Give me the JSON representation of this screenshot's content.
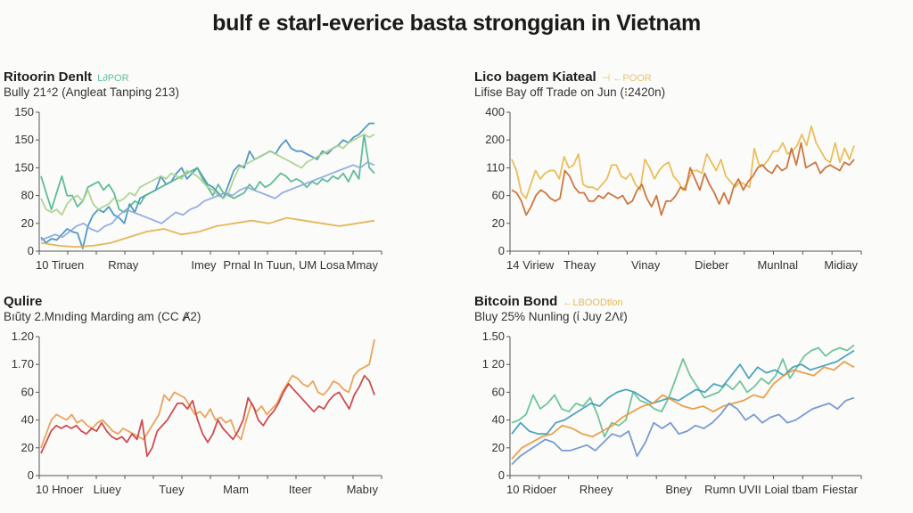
{
  "page": {
    "title": "bulf e starl-everice basta stronggian in Vietnam"
  },
  "chart_data": [
    {
      "type": "line",
      "title": "Ritoorin Denlt",
      "legend_tag": "L∂POR",
      "legend_color": "#5fbf9f",
      "subtitle": "Bully 21⁴2 (Angleat Tanping 213)",
      "xlabel": "",
      "ylabel": "",
      "y_ticks": [
        "0",
        "20",
        "80",
        "150",
        "150",
        "150"
      ],
      "x_ticks": [
        "10 Tiruen",
        "Rmay",
        "Imey",
        "Prnal In Tuun, UM Losa",
        "Mmay"
      ],
      "y_units": "tick-position (0 = bottom tick, 5 = top tick)",
      "ylim": [
        0,
        5
      ],
      "grid": false,
      "series": [
        {
          "name": "blue",
          "color": "#3d8fbf",
          "values": [
            0.5,
            0.3,
            0.45,
            0.4,
            0.6,
            0.8,
            0.7,
            0.65,
            0.1,
            0.9,
            1.3,
            1.5,
            1.4,
            1.6,
            1.3,
            1.2,
            1.0,
            1.7,
            1.4,
            1.9,
            2.0,
            2.1,
            2.2,
            2.7,
            2.4,
            2.5,
            2.8,
            3.0,
            2.6,
            2.8,
            3.0,
            2.7,
            2.4,
            2.3,
            2.1,
            1.9,
            2.4,
            2.9,
            3.1,
            3.0,
            3.6,
            3.3,
            3.4,
            3.5,
            3.6,
            3.5,
            3.8,
            4.0,
            3.7,
            3.6,
            3.6,
            3.5,
            3.4,
            3.3,
            3.6,
            3.5,
            3.7,
            3.8,
            4.0,
            3.9,
            4.1,
            4.2,
            4.4,
            4.6,
            4.6
          ]
        },
        {
          "name": "teal",
          "color": "#4fb58f",
          "values": [
            2.7,
            2.1,
            1.5,
            2.1,
            2.7,
            2.0,
            2.0,
            1.6,
            1.8,
            2.3,
            2.4,
            2.5,
            2.2,
            2.4,
            2.1,
            1.5,
            1.4,
            1.6,
            1.8,
            1.7,
            2.0,
            2.1,
            2.2,
            2.3,
            2.4,
            2.5,
            2.6,
            2.7,
            2.8,
            2.9,
            3.0,
            2.6,
            2.3,
            2.0,
            2.4,
            2.1,
            2.0,
            1.9,
            2.0,
            2.1,
            2.4,
            2.2,
            2.5,
            2.3,
            2.4,
            2.6,
            2.8,
            2.7,
            2.5,
            2.6,
            2.5,
            2.3,
            2.5,
            2.4,
            2.6,
            2.5,
            2.7,
            2.6,
            2.8,
            2.5,
            2.9,
            2.6,
            4.2,
            3.0,
            2.8
          ]
        },
        {
          "name": "light-green",
          "color": "#a8d08a",
          "values": [
            1.9,
            1.5,
            1.4,
            1.5,
            1.3,
            1.7,
            1.9,
            2.0,
            1.8,
            2.2,
            1.7,
            1.5,
            1.6,
            1.7,
            1.9,
            1.8,
            1.9,
            2.1,
            2.0,
            2.3,
            2.4,
            2.5,
            2.6,
            2.7,
            2.6,
            2.8,
            2.7,
            2.6,
            2.9,
            2.8,
            2.7,
            2.5,
            2.3,
            2.2,
            2.0,
            1.9,
            2.1,
            2.6,
            3.0,
            3.1,
            3.2,
            3.3,
            3.4,
            3.5,
            3.6,
            3.5,
            3.4,
            3.3,
            3.2,
            3.1,
            3.0,
            3.2,
            3.3,
            3.4,
            3.5,
            3.6,
            3.7,
            3.8,
            3.7,
            3.9,
            4.0,
            4.1,
            4.2,
            4.1,
            4.2
          ]
        },
        {
          "name": "periwinkle",
          "color": "#8aa6dd",
          "values": [
            0.4,
            0.5,
            0.6,
            0.5,
            0.7,
            0.9,
            1.0,
            0.8,
            0.7,
            0.9,
            1.0,
            1.3,
            1.5,
            1.4,
            1.3,
            1.2,
            1.1,
            1.0,
            1.2,
            1.4,
            1.3,
            1.5,
            1.6,
            1.8,
            1.9,
            2.0,
            2.1,
            2.0,
            2.2,
            2.3,
            2.2,
            2.1,
            2.0,
            1.9,
            2.1,
            2.2,
            2.3,
            2.4,
            2.5,
            2.6,
            2.7,
            2.8,
            2.9,
            3.0,
            3.1,
            3.0,
            3.2,
            3.1
          ]
        },
        {
          "name": "gold",
          "color": "#e0b04a",
          "values": [
            0.3,
            0.2,
            0.15,
            0.2,
            0.3,
            0.5,
            0.7,
            0.8,
            0.6,
            0.7,
            0.9,
            1.0,
            1.1,
            1.0,
            1.2,
            1.1,
            1.0,
            0.9,
            1.0,
            1.1
          ]
        }
      ]
    },
    {
      "type": "line",
      "title": "Lico bagem Kiateal",
      "legend_tag": "⊣ ←POOR",
      "legend_color": "#f0c070",
      "subtitle": "Lifise Bay off Trade on Jun (⁝2420n)",
      "xlabel": "",
      "ylabel": "",
      "y_ticks": [
        "0",
        "20",
        "60",
        "110",
        "200",
        "400"
      ],
      "x_ticks": [
        "14 Viriew",
        "Theay",
        "Vinay",
        "Dieber",
        "Munlnal",
        "Midiay"
      ],
      "y_units": "tick-position (0 = bottom tick, 5 = top tick)",
      "ylim": [
        0,
        5
      ],
      "grid": false,
      "series": [
        {
          "name": "gold",
          "color": "#e8b84a",
          "values": [
            3.3,
            2.9,
            2.1,
            1.9,
            2.4,
            2.9,
            2.6,
            2.8,
            2.9,
            2.9,
            2.6,
            3.4,
            3.0,
            3.1,
            3.5,
            2.4,
            2.3,
            2.3,
            2.2,
            2.4,
            2.6,
            3.1,
            3.1,
            2.7,
            2.6,
            2.8,
            2.4,
            2.2,
            3.3,
            3.0,
            2.6,
            2.9,
            3.1,
            3.2,
            2.7,
            2.5,
            2.2,
            2.5,
            2.9,
            2.9,
            2.8,
            3.5,
            3.2,
            2.9,
            3.3,
            2.7,
            2.5,
            2.3,
            2.5,
            2.4,
            2.3,
            3.7,
            3.1,
            3.1,
            3.3,
            3.6,
            3.6,
            3.9,
            3.5,
            3.6,
            3.8,
            4.2,
            3.8,
            4.5,
            3.9,
            3.6,
            3.3,
            3.2,
            3.9,
            3.2,
            3.7,
            3.3,
            3.8
          ]
        },
        {
          "name": "rust",
          "color": "#c8682f",
          "values": [
            2.2,
            2.1,
            1.8,
            1.3,
            1.6,
            2.0,
            2.2,
            2.1,
            1.9,
            1.8,
            1.9,
            2.9,
            2.7,
            2.3,
            2.1,
            2.1,
            1.8,
            1.8,
            2.0,
            1.9,
            2.1,
            2.0,
            1.9,
            2.0,
            1.7,
            1.8,
            2.2,
            2.4,
            1.9,
            1.6,
            2.0,
            1.3,
            1.8,
            1.8,
            2.0,
            2.3,
            2.2,
            3.0,
            2.6,
            2.2,
            2.8,
            2.4,
            2.1,
            1.7,
            2.1,
            1.7,
            2.3,
            2.6,
            2.2,
            2.5,
            2.7,
            3.0,
            3.1,
            2.9,
            2.8,
            3.1,
            2.9,
            3.0,
            3.7,
            3.1,
            3.9,
            3.0,
            3.1,
            3.2,
            2.8,
            3.0,
            3.1,
            3.0,
            2.9,
            3.2,
            3.1,
            3.3
          ]
        }
      ]
    },
    {
      "type": "line",
      "title": "Qulire",
      "legend_tag": "",
      "legend_color": "",
      "subtitle": "Bıŭty 2.Mnıding Marding am (CC Ⱥ2)",
      "xlabel": "",
      "ylabel": "",
      "y_ticks": [
        "0",
        "20",
        "40",
        "60",
        "1.70",
        "1.20"
      ],
      "x_ticks": [
        "10 Hnoer",
        "Liuey",
        "Tuey",
        "Mam",
        "Iteer",
        "Mabıy"
      ],
      "y_units": "tick-position (0 = bottom tick, 5 = top tick)",
      "ylim": [
        0,
        5
      ],
      "grid": false,
      "series": [
        {
          "name": "orange",
          "color": "#e89a4a",
          "values": [
            1.0,
            1.5,
            2.0,
            2.2,
            2.1,
            2.0,
            2.2,
            1.9,
            2.0,
            1.8,
            1.7,
            1.9,
            2.0,
            1.8,
            1.6,
            1.5,
            1.7,
            1.6,
            1.5,
            1.4,
            1.3,
            1.6,
            1.9,
            2.2,
            2.9,
            2.7,
            3.0,
            2.9,
            2.8,
            2.5,
            2.2,
            2.3,
            2.1,
            2.4,
            2.0,
            2.1,
            1.9,
            2.0,
            1.5,
            1.3,
            2.0,
            2.6,
            2.3,
            2.5,
            2.2,
            2.4,
            2.6,
            3.0,
            3.3,
            3.6,
            3.5,
            3.3,
            3.2,
            3.4,
            3.0,
            2.9,
            3.1,
            3.4,
            3.3,
            3.1,
            3.0,
            3.6,
            3.8,
            3.9,
            4.0,
            4.9
          ]
        },
        {
          "name": "crimson",
          "color": "#c8383f",
          "values": [
            0.8,
            1.2,
            1.6,
            1.8,
            1.7,
            1.8,
            1.7,
            1.8,
            1.6,
            1.5,
            1.7,
            1.6,
            1.9,
            1.6,
            1.4,
            1.3,
            1.4,
            1.2,
            1.5,
            1.3,
            2.0,
            0.7,
            1.0,
            1.6,
            1.8,
            2.0,
            2.3,
            2.6,
            2.6,
            2.4,
            2.7,
            2.0,
            1.5,
            1.2,
            1.5,
            2.0,
            1.7,
            1.5,
            1.3,
            1.6,
            2.0,
            2.8,
            2.5,
            2.0,
            1.8,
            2.1,
            2.3,
            2.6,
            3.0,
            3.3,
            3.1,
            2.9,
            2.7,
            2.5,
            2.3,
            2.5,
            2.4,
            2.7,
            2.9,
            3.0,
            2.7,
            2.4,
            2.9,
            3.2,
            3.6,
            3.4,
            2.9
          ]
        }
      ]
    },
    {
      "type": "line",
      "title": "Bitcoin Bond",
      "legend_tag": "←LBOODtlon",
      "legend_color": "#e8b85a",
      "subtitle": "Bluy 25% Nunling (ί Juy 2Λℓ)",
      "xlabel": "",
      "ylabel": "",
      "y_ticks": [
        "0",
        "20",
        "40",
        "60",
        "1 20",
        "1.50"
      ],
      "x_ticks": [
        "10 Ridoer",
        "Rheey",
        "Bney",
        "Rumn UVII Loial tbam",
        "Fiestar"
      ],
      "y_units": "tick-position (0 = bottom tick, 5 = top tick)",
      "ylim": [
        0,
        5
      ],
      "grid": false,
      "series": [
        {
          "name": "green",
          "color": "#5fbf8f",
          "values": [
            1.9,
            2.0,
            2.2,
            2.9,
            2.4,
            2.6,
            2.9,
            2.4,
            2.3,
            2.6,
            2.5,
            2.8,
            2.2,
            1.4,
            1.9,
            1.8,
            2.0,
            3.0,
            2.7,
            2.6,
            2.4,
            2.3,
            2.8,
            3.5,
            4.2,
            3.6,
            3.2,
            2.8,
            2.9,
            3.0,
            3.3,
            3.1,
            3.4,
            3.0,
            3.2,
            3.5,
            3.3,
            3.6,
            4.2,
            3.5,
            3.9,
            4.3,
            4.5,
            4.6,
            4.3,
            4.5,
            4.6,
            4.5,
            4.7
          ]
        },
        {
          "name": "teal-blue",
          "color": "#3a9ab8",
          "values": [
            1.5,
            1.9,
            1.6,
            1.5,
            1.5,
            1.9,
            2.0,
            2.2,
            2.4,
            2.6,
            2.5,
            2.8,
            3.0,
            3.1,
            3.0,
            2.8,
            2.6,
            2.7,
            2.8,
            2.7,
            2.9,
            3.1,
            3.0,
            3.3,
            3.2,
            3.6,
            4.0,
            3.5,
            3.9,
            3.7,
            3.8,
            3.6,
            3.9,
            4.0,
            3.8,
            3.9,
            4.0,
            4.1,
            4.3,
            4.5
          ]
        },
        {
          "name": "orange",
          "color": "#e8963a",
          "values": [
            0.6,
            1.0,
            1.2,
            1.4,
            1.5,
            1.8,
            1.7,
            1.5,
            1.4,
            1.6,
            1.8,
            2.1,
            2.3,
            2.5,
            2.6,
            2.9,
            2.7,
            2.5,
            2.4,
            2.5,
            2.3,
            2.5,
            2.6,
            2.7,
            2.9,
            2.8,
            3.3,
            3.6,
            3.8,
            3.7,
            3.6,
            3.9,
            3.8,
            4.1,
            3.9
          ]
        },
        {
          "name": "blue",
          "color": "#6a90cc",
          "values": [
            0.4,
            0.7,
            0.9,
            1.1,
            1.3,
            1.2,
            0.9,
            0.9,
            1.0,
            1.1,
            0.9,
            1.2,
            1.5,
            1.4,
            1.6,
            0.7,
            1.2,
            1.9,
            1.7,
            1.9,
            1.5,
            1.6,
            1.8,
            1.7,
            1.9,
            2.2,
            2.6,
            2.4,
            2.0,
            2.2,
            1.9,
            2.1,
            2.2,
            1.9,
            2.0,
            2.2,
            2.4,
            2.5,
            2.6,
            2.4,
            2.7,
            2.8
          ]
        }
      ]
    }
  ]
}
